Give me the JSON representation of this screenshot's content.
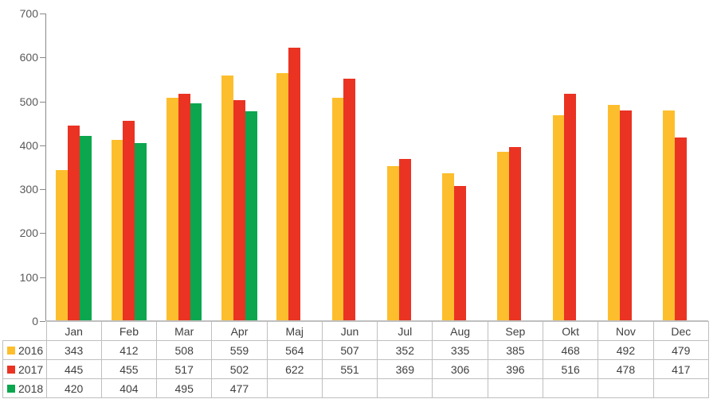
{
  "chart_data": {
    "type": "bar",
    "title": "",
    "xlabel": "",
    "ylabel": "",
    "categories": [
      "Jan",
      "Feb",
      "Mar",
      "Apr",
      "Maj",
      "Jun",
      "Jul",
      "Aug",
      "Sep",
      "Okt",
      "Nov",
      "Dec"
    ],
    "series": [
      {
        "name": "2016",
        "color": "#FDBE2D",
        "values": [
          343,
          412,
          508,
          559,
          564,
          507,
          352,
          335,
          385,
          468,
          492,
          479
        ]
      },
      {
        "name": "2017",
        "color": "#EA3323",
        "values": [
          445,
          455,
          517,
          502,
          622,
          551,
          369,
          306,
          396,
          516,
          478,
          417
        ]
      },
      {
        "name": "2018",
        "color": "#0BA64E",
        "values": [
          420,
          404,
          495,
          477,
          null,
          null,
          null,
          null,
          null,
          null,
          null,
          null
        ]
      }
    ],
    "ylim": [
      0,
      700
    ],
    "yticks": [
      0,
      100,
      200,
      300,
      400,
      500,
      600,
      700
    ],
    "grid": false,
    "legend_position": "data-table-left",
    "axis_color": "#898989",
    "table_border_color": "#bfbfbf",
    "axis_label_color": "#595959",
    "table_text_color": "#404040"
  }
}
